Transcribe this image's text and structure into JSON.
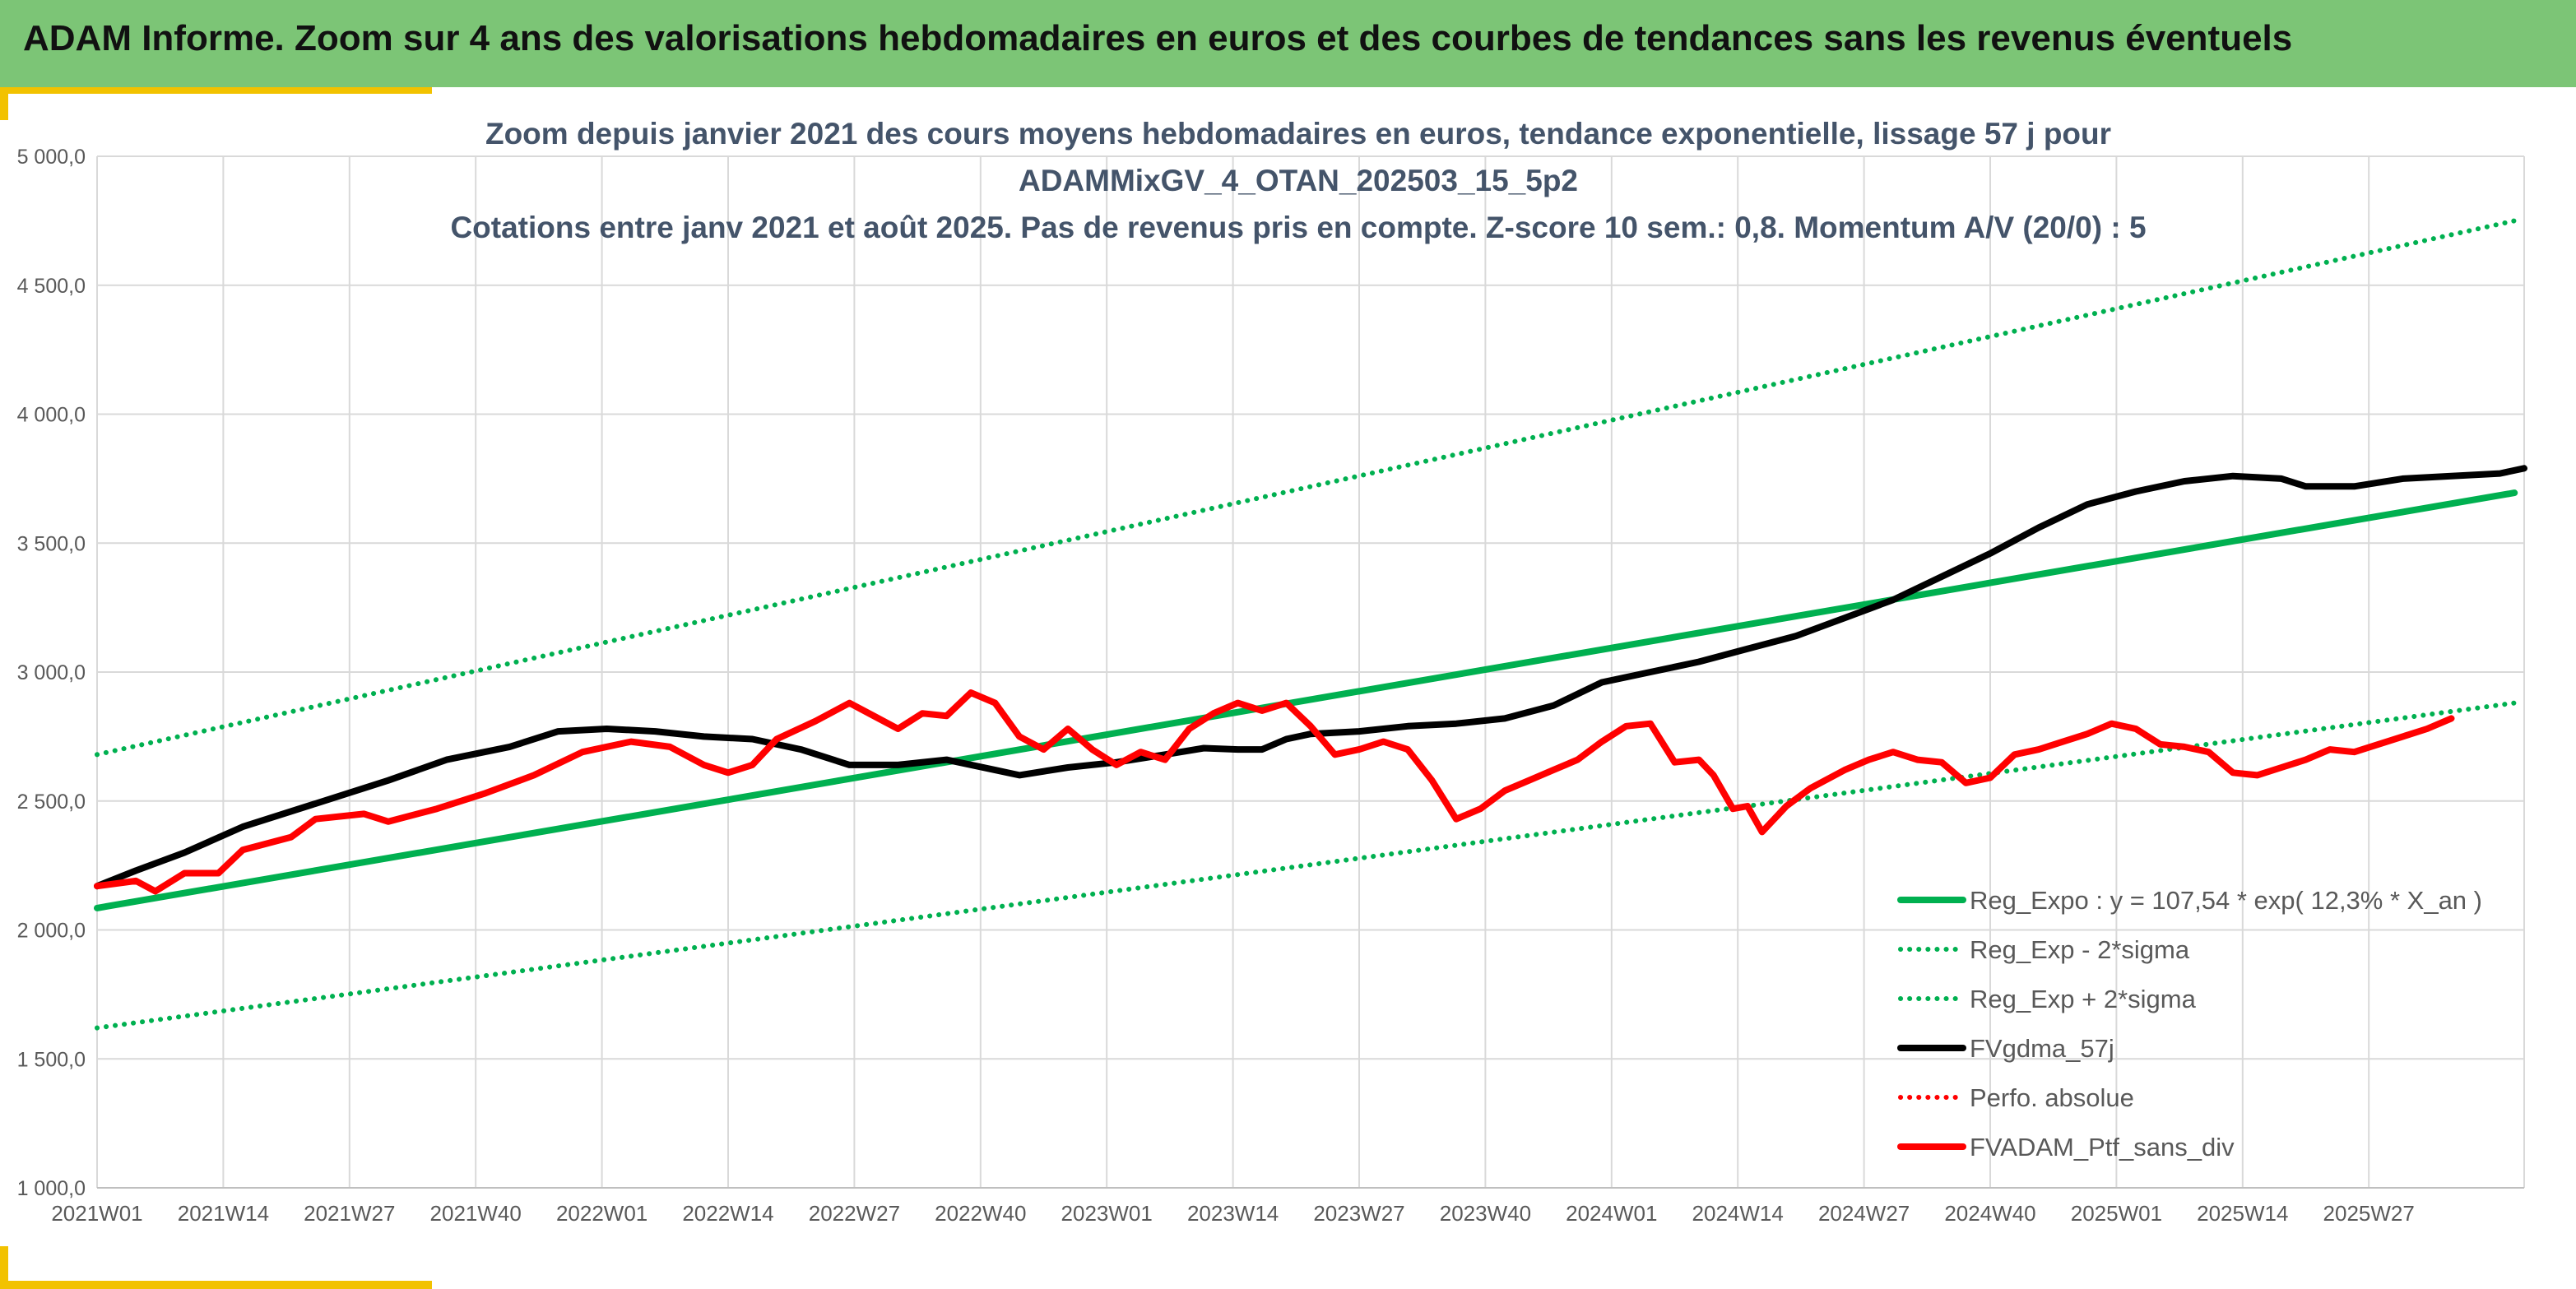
{
  "banner": {
    "title": "ADAM Informe. Zoom sur 4 ans des valorisations hebdomadaires en euros et des courbes de tendances sans les revenus éventuels"
  },
  "colors": {
    "banner_bg": "#7cc576",
    "gold_accent": "#f2c200",
    "green_series": "#00b050",
    "black_series": "#000000",
    "red_series": "#ff0000",
    "title_text": "#44546a",
    "axis_text": "#595959",
    "grid": "#d9d9d9"
  },
  "chart_data": {
    "type": "line",
    "title_lines": [
      "Zoom depuis janvier 2021 des cours moyens hebdomadaires en euros, tendance exponentielle, lissage 57 j pour",
      "ADAMMixGV_4_OTAN_202503_15_5p2",
      "Cotations entre janv 2021 et août 2025. Pas de revenus pris en compte. Z-score 10 sem.: 0,8. Momentum A/V (20/0) : 5"
    ],
    "xlabel": "",
    "ylabel": "",
    "ylim": [
      1000,
      5000
    ],
    "y_ticks": [
      {
        "value": 1000,
        "label": "1 000,0"
      },
      {
        "value": 1500,
        "label": "1 500,0"
      },
      {
        "value": 2000,
        "label": "2 000,0"
      },
      {
        "value": 2500,
        "label": "2 500,0"
      },
      {
        "value": 3000,
        "label": "3 000,0"
      },
      {
        "value": 3500,
        "label": "3 500,0"
      },
      {
        "value": 4000,
        "label": "4 000,0"
      },
      {
        "value": 4500,
        "label": "4 500,0"
      },
      {
        "value": 5000,
        "label": "5 000,0"
      }
    ],
    "x_categories": [
      "2021W01",
      "2021W14",
      "2021W27",
      "2021W40",
      "2022W01",
      "2022W14",
      "2022W27",
      "2022W40",
      "2023W01",
      "2023W14",
      "2023W27",
      "2023W40",
      "2024W01",
      "2024W14",
      "2024W27",
      "2024W40",
      "2025W01",
      "2025W14",
      "2025W27"
    ],
    "x_tick_every": 13,
    "n_weeks": 250,
    "grid": true,
    "legend_position": "bottom-right",
    "series": [
      {
        "name": "Reg_Expo : y = 107,54 * exp( 12,3% *  X_an )",
        "style": "solid",
        "color": "#00b050",
        "points": [
          [
            0,
            2085
          ],
          [
            249,
            3695
          ]
        ]
      },
      {
        "name": "Reg_Exp - 2*sigma",
        "style": "dotted",
        "color": "#00b050",
        "points": [
          [
            0,
            1620
          ],
          [
            249,
            2880
          ]
        ]
      },
      {
        "name": "Reg_Exp + 2*sigma",
        "style": "dotted",
        "color": "#00b050",
        "points": [
          [
            0,
            2680
          ],
          [
            249,
            4750
          ]
        ]
      },
      {
        "name": "FVgdma_57j",
        "style": "solid",
        "color": "#000000",
        "points": [
          [
            0,
            2170
          ],
          [
            8,
            2230
          ],
          [
            18,
            2300
          ],
          [
            30,
            2400
          ],
          [
            45,
            2490
          ],
          [
            60,
            2580
          ],
          [
            72,
            2660
          ],
          [
            85,
            2710
          ],
          [
            95,
            2770
          ],
          [
            105,
            2780
          ],
          [
            115,
            2770
          ],
          [
            125,
            2750
          ],
          [
            135,
            2740
          ],
          [
            145,
            2700
          ],
          [
            155,
            2640
          ],
          [
            165,
            2640
          ],
          [
            175,
            2660
          ],
          [
            185,
            2620
          ],
          [
            190,
            2600
          ],
          [
            200,
            2630
          ],
          [
            210,
            2650
          ],
          [
            220,
            2680
          ],
          [
            228,
            2705
          ],
          [
            235,
            2700
          ],
          [
            240,
            2700
          ],
          [
            245,
            2740
          ],
          [
            250,
            2760
          ],
          [
            260,
            2770
          ],
          [
            270,
            2790
          ],
          [
            280,
            2800
          ],
          [
            290,
            2820
          ],
          [
            300,
            2870
          ],
          [
            310,
            2960
          ],
          [
            320,
            3000
          ],
          [
            330,
            3040
          ],
          [
            340,
            3090
          ],
          [
            350,
            3140
          ],
          [
            360,
            3210
          ],
          [
            370,
            3280
          ],
          [
            380,
            3370
          ],
          [
            390,
            3460
          ],
          [
            400,
            3560
          ],
          [
            410,
            3650
          ],
          [
            420,
            3700
          ],
          [
            430,
            3740
          ],
          [
            440,
            3760
          ],
          [
            450,
            3750
          ],
          [
            455,
            3720
          ],
          [
            465,
            3720
          ],
          [
            475,
            3750
          ],
          [
            485,
            3760
          ],
          [
            495,
            3770
          ],
          [
            500,
            3790
          ]
        ]
      },
      {
        "name": "Perfo. absolue",
        "style": "dotted",
        "color": "#ff0000",
        "points": []
      },
      {
        "name": "FVADAM_Ptf_sans_div",
        "style": "solid",
        "color": "#ff0000",
        "points": [
          [
            0,
            2170
          ],
          [
            8,
            2190
          ],
          [
            12,
            2150
          ],
          [
            18,
            2220
          ],
          [
            25,
            2220
          ],
          [
            30,
            2310
          ],
          [
            40,
            2360
          ],
          [
            45,
            2430
          ],
          [
            55,
            2450
          ],
          [
            60,
            2420
          ],
          [
            70,
            2470
          ],
          [
            80,
            2530
          ],
          [
            90,
            2600
          ],
          [
            100,
            2690
          ],
          [
            110,
            2730
          ],
          [
            118,
            2710
          ],
          [
            125,
            2640
          ],
          [
            130,
            2610
          ],
          [
            135,
            2640
          ],
          [
            140,
            2740
          ],
          [
            148,
            2810
          ],
          [
            155,
            2880
          ],
          [
            160,
            2830
          ],
          [
            165,
            2780
          ],
          [
            170,
            2840
          ],
          [
            175,
            2830
          ],
          [
            180,
            2920
          ],
          [
            185,
            2880
          ],
          [
            190,
            2750
          ],
          [
            195,
            2700
          ],
          [
            200,
            2780
          ],
          [
            205,
            2700
          ],
          [
            210,
            2640
          ],
          [
            215,
            2690
          ],
          [
            220,
            2660
          ],
          [
            225,
            2780
          ],
          [
            230,
            2840
          ],
          [
            235,
            2880
          ],
          [
            240,
            2850
          ],
          [
            245,
            2880
          ],
          [
            250,
            2790
          ],
          [
            255,
            2680
          ],
          [
            260,
            2700
          ],
          [
            265,
            2730
          ],
          [
            270,
            2700
          ],
          [
            275,
            2580
          ],
          [
            280,
            2430
          ],
          [
            285,
            2470
          ],
          [
            290,
            2540
          ],
          [
            295,
            2580
          ],
          [
            300,
            2620
          ],
          [
            305,
            2660
          ],
          [
            310,
            2730
          ],
          [
            315,
            2790
          ],
          [
            320,
            2800
          ],
          [
            325,
            2650
          ],
          [
            330,
            2660
          ],
          [
            333,
            2600
          ],
          [
            337,
            2470
          ],
          [
            340,
            2480
          ],
          [
            343,
            2380
          ],
          [
            348,
            2480
          ],
          [
            353,
            2550
          ],
          [
            360,
            2620
          ],
          [
            365,
            2660
          ],
          [
            370,
            2690
          ],
          [
            375,
            2660
          ],
          [
            380,
            2650
          ],
          [
            385,
            2570
          ],
          [
            390,
            2590
          ],
          [
            395,
            2680
          ],
          [
            400,
            2700
          ],
          [
            405,
            2730
          ],
          [
            410,
            2760
          ],
          [
            415,
            2800
          ],
          [
            420,
            2780
          ],
          [
            425,
            2720
          ],
          [
            430,
            2710
          ],
          [
            435,
            2690
          ],
          [
            440,
            2610
          ],
          [
            445,
            2600
          ],
          [
            450,
            2630
          ],
          [
            455,
            2660
          ],
          [
            460,
            2700
          ],
          [
            465,
            2690
          ],
          [
            470,
            2720
          ],
          [
            475,
            2750
          ],
          [
            480,
            2780
          ],
          [
            485,
            2820
          ]
        ]
      }
    ]
  },
  "legend": [
    {
      "label": "Reg_Expo : y = 107,54 * exp( 12,3% *  X_an )",
      "style": "solid",
      "color": "#00b050"
    },
    {
      "label": "Reg_Exp - 2*sigma",
      "style": "dotted",
      "color": "#00b050"
    },
    {
      "label": "Reg_Exp + 2*sigma",
      "style": "dotted",
      "color": "#00b050"
    },
    {
      "label": "FVgdma_57j",
      "style": "solid",
      "color": "#000000"
    },
    {
      "label": "Perfo. absolue",
      "style": "dotted",
      "color": "#ff0000"
    },
    {
      "label": "FVADAM_Ptf_sans_div",
      "style": "solid",
      "color": "#ff0000"
    }
  ]
}
